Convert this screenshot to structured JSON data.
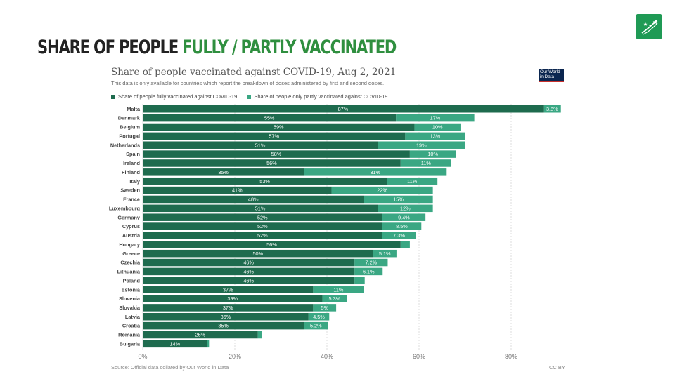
{
  "slide": {
    "title_part1": "SHARE OF PEOPLE",
    "title_part2": "FULLY / PARTLY VACCINATED"
  },
  "logo": {
    "icon": "bnp-paribas-stars-logo-icon",
    "color": "#1f9a55"
  },
  "owid_badge": {
    "line1": "Our World",
    "line2": "in Data"
  },
  "colors": {
    "fully": "#1e6b4e",
    "partly": "#3aa783",
    "accent": "#2f8f3f"
  },
  "chart_data": {
    "type": "bar",
    "orientation": "horizontal",
    "stacked": true,
    "title": "Share of people vaccinated against COVID-19, Aug 2, 2021",
    "subtitle": "This data is only available for countries which report the breakdown of doses administered by first and second doses.",
    "categories": [
      "Malta",
      "Denmark",
      "Belgium",
      "Portugal",
      "Netherlands",
      "Spain",
      "Ireland",
      "Finland",
      "Italy",
      "Sweden",
      "France",
      "Luxembourg",
      "Germany",
      "Cyprus",
      "Austria",
      "Hungary",
      "Greece",
      "Czechia",
      "Lithuania",
      "Poland",
      "Estonia",
      "Slovenia",
      "Slovakia",
      "Latvia",
      "Croatia",
      "Romania",
      "Bulgaria"
    ],
    "series": [
      {
        "name": "Share of people fully vaccinated against COVID-19",
        "color": "#1e6b4e",
        "values": [
          87,
          55,
          59,
          57,
          51,
          58,
          56,
          35,
          53,
          41,
          48,
          51,
          52,
          52,
          52,
          56,
          50,
          46,
          46,
          46,
          37,
          39,
          37,
          36,
          35,
          25,
          14
        ],
        "labels": [
          "87%",
          "55%",
          "59%",
          "57%",
          "51%",
          "58%",
          "56%",
          "35%",
          "53%",
          "41%",
          "48%",
          "51%",
          "52%",
          "52%",
          "52%",
          "56%",
          "50%",
          "46%",
          "46%",
          "46%",
          "37%",
          "39%",
          "37%",
          "36%",
          "35%",
          "25%",
          "14%"
        ]
      },
      {
        "name": "Share of people only partly vaccinated against COVID-19",
        "color": "#3aa783",
        "values": [
          3.8,
          17,
          10,
          13,
          19,
          10,
          11,
          31,
          11,
          22,
          15,
          12,
          9.4,
          8.5,
          7.3,
          2,
          5.1,
          7.2,
          6.1,
          2.2,
          11,
          5.3,
          5,
          4.5,
          5.2,
          0.8,
          0.4
        ],
        "labels": [
          "3.8%",
          "17%",
          "10%",
          "13%",
          "19%",
          "10%",
          "11%",
          "31%",
          "11%",
          "22%",
          "15%",
          "12%",
          "9.4%",
          "8.5%",
          "7.3%",
          "",
          "5.1%",
          "7.2%",
          "6.1%",
          "",
          "11%",
          "5.3%",
          "5%",
          "4.5%",
          "5.2%",
          "",
          ""
        ]
      }
    ],
    "xlim": [
      0,
      90
    ],
    "xticks": [
      0,
      20,
      40,
      60,
      80
    ],
    "xtick_labels": [
      "0%",
      "20%",
      "40%",
      "60%",
      "80%"
    ],
    "grid": true,
    "legend_position": "top-left",
    "source": "Source: Official data collated by Our World in Data",
    "license": "CC BY"
  }
}
